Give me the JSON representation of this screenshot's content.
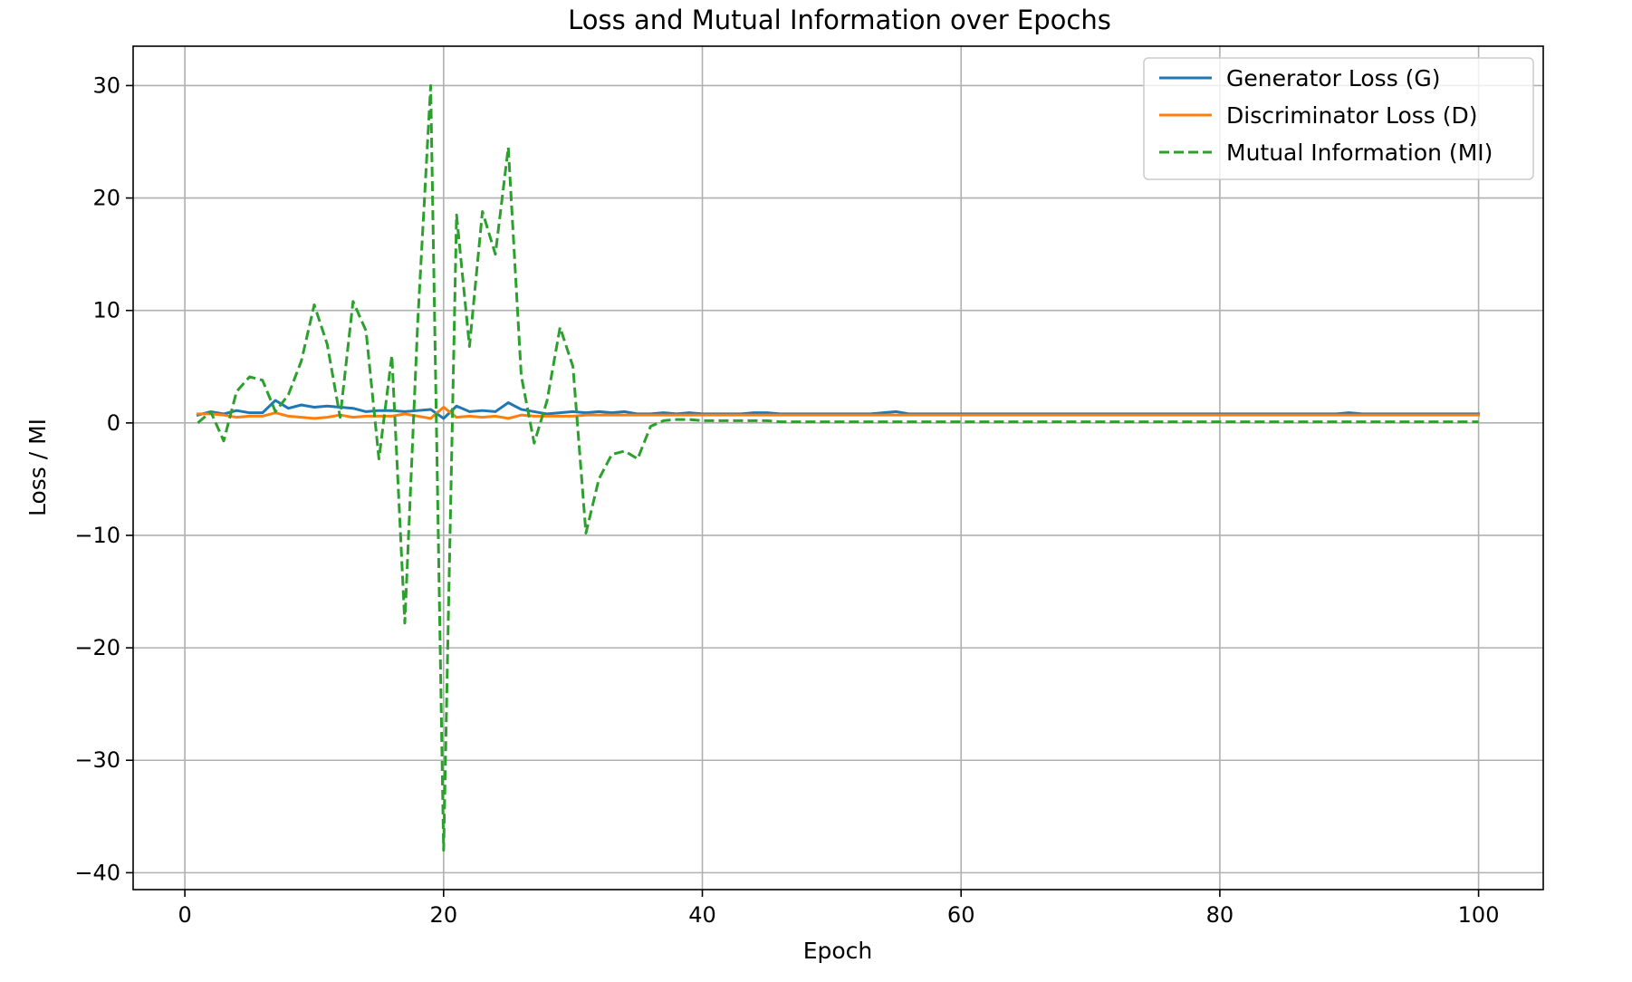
{
  "chart_data": {
    "type": "line",
    "title": "Loss and Mutual Information over Epochs",
    "xlabel": "Epoch",
    "ylabel": "Loss / MI",
    "xlim": [
      -4,
      105
    ],
    "ylim": [
      -41.5,
      33.5
    ],
    "xticks": [
      0,
      20,
      40,
      60,
      80,
      100
    ],
    "yticks": [
      -40,
      -30,
      -20,
      -10,
      0,
      10,
      20,
      30
    ],
    "xtick_labels": [
      "0",
      "20",
      "40",
      "60",
      "80",
      "100"
    ],
    "ytick_labels": [
      "−40",
      "−30",
      "−20",
      "−10",
      "0",
      "10",
      "20",
      "30"
    ],
    "grid": true,
    "legend_position": "upper right",
    "x": [
      1,
      2,
      3,
      4,
      5,
      6,
      7,
      8,
      9,
      10,
      11,
      12,
      13,
      14,
      15,
      16,
      17,
      18,
      19,
      20,
      21,
      22,
      23,
      24,
      25,
      26,
      27,
      28,
      29,
      30,
      31,
      32,
      33,
      34,
      35,
      36,
      37,
      38,
      39,
      40,
      41,
      42,
      43,
      44,
      45,
      46,
      47,
      48,
      49,
      50,
      51,
      52,
      53,
      54,
      55,
      56,
      57,
      58,
      59,
      60,
      61,
      62,
      63,
      64,
      65,
      66,
      67,
      68,
      69,
      70,
      71,
      72,
      73,
      74,
      75,
      76,
      77,
      78,
      79,
      80,
      81,
      82,
      83,
      84,
      85,
      86,
      87,
      88,
      89,
      90,
      91,
      92,
      93,
      94,
      95,
      96,
      97,
      98,
      99,
      100
    ],
    "series": [
      {
        "name": "Generator Loss (G)",
        "color": "#1f77b4",
        "style": "solid",
        "values": [
          0.7,
          1.0,
          0.8,
          1.1,
          0.9,
          0.9,
          2.0,
          1.3,
          1.6,
          1.4,
          1.5,
          1.4,
          1.3,
          1.0,
          1.1,
          1.1,
          1.0,
          1.1,
          1.2,
          0.4,
          1.5,
          1.0,
          1.1,
          1.0,
          1.8,
          1.2,
          1.0,
          0.8,
          0.9,
          1.0,
          0.9,
          1.0,
          0.9,
          1.0,
          0.8,
          0.8,
          0.9,
          0.8,
          0.9,
          0.8,
          0.8,
          0.8,
          0.8,
          0.9,
          0.9,
          0.8,
          0.8,
          0.8,
          0.8,
          0.8,
          0.8,
          0.8,
          0.8,
          0.9,
          1.0,
          0.8,
          0.8,
          0.8,
          0.8,
          0.8,
          0.8,
          0.8,
          0.8,
          0.8,
          0.8,
          0.8,
          0.8,
          0.8,
          0.8,
          0.8,
          0.8,
          0.8,
          0.8,
          0.8,
          0.8,
          0.8,
          0.8,
          0.8,
          0.8,
          0.8,
          0.8,
          0.8,
          0.8,
          0.8,
          0.8,
          0.8,
          0.8,
          0.8,
          0.8,
          0.9,
          0.8,
          0.8,
          0.8,
          0.8,
          0.8,
          0.8,
          0.8,
          0.8,
          0.8,
          0.8
        ]
      },
      {
        "name": "Discriminator Loss (D)",
        "color": "#ff7f0e",
        "style": "solid",
        "values": [
          0.8,
          0.8,
          0.7,
          0.5,
          0.6,
          0.6,
          0.9,
          0.6,
          0.5,
          0.4,
          0.5,
          0.7,
          0.5,
          0.6,
          0.6,
          0.6,
          0.8,
          0.6,
          0.4,
          1.4,
          0.5,
          0.6,
          0.5,
          0.6,
          0.4,
          0.7,
          0.6,
          0.6,
          0.6,
          0.6,
          0.7,
          0.7,
          0.7,
          0.7,
          0.7,
          0.7,
          0.7,
          0.7,
          0.7,
          0.7,
          0.7,
          0.7,
          0.7,
          0.7,
          0.7,
          0.7,
          0.7,
          0.7,
          0.7,
          0.7,
          0.7,
          0.7,
          0.7,
          0.7,
          0.7,
          0.7,
          0.7,
          0.7,
          0.7,
          0.7,
          0.7,
          0.7,
          0.7,
          0.7,
          0.7,
          0.7,
          0.7,
          0.7,
          0.7,
          0.7,
          0.7,
          0.7,
          0.7,
          0.7,
          0.7,
          0.7,
          0.7,
          0.7,
          0.7,
          0.7,
          0.7,
          0.7,
          0.7,
          0.7,
          0.7,
          0.7,
          0.7,
          0.7,
          0.7,
          0.7,
          0.7,
          0.7,
          0.7,
          0.7,
          0.7,
          0.7,
          0.7,
          0.7,
          0.7,
          0.7
        ]
      },
      {
        "name": "Mutual Information (MI)",
        "color": "#2ca02c",
        "style": "dashed",
        "values": [
          0.0,
          1.0,
          -1.6,
          2.8,
          4.1,
          3.8,
          1.0,
          2.5,
          5.5,
          10.5,
          7.0,
          0.5,
          10.8,
          8.2,
          -3.2,
          6.0,
          -17.8,
          9.0,
          30.0,
          -38.0,
          18.5,
          6.8,
          18.8,
          15.0,
          24.5,
          4.2,
          -1.8,
          2.0,
          8.5,
          5.0,
          -9.8,
          -5.0,
          -2.8,
          -2.5,
          -3.2,
          -0.3,
          0.2,
          0.3,
          0.3,
          0.2,
          0.2,
          0.2,
          0.2,
          0.2,
          0.2,
          0.1,
          0.1,
          0.1,
          0.1,
          0.1,
          0.1,
          0.1,
          0.1,
          0.1,
          0.1,
          0.1,
          0.1,
          0.1,
          0.1,
          0.1,
          0.1,
          0.1,
          0.1,
          0.1,
          0.1,
          0.1,
          0.1,
          0.1,
          0.1,
          0.1,
          0.1,
          0.1,
          0.1,
          0.1,
          0.1,
          0.1,
          0.1,
          0.1,
          0.1,
          0.1,
          0.1,
          0.1,
          0.1,
          0.1,
          0.1,
          0.1,
          0.1,
          0.1,
          0.1,
          0.1,
          0.1,
          0.1,
          0.1,
          0.1,
          0.1,
          0.1,
          0.1,
          0.1,
          0.1,
          0.1
        ]
      }
    ]
  }
}
